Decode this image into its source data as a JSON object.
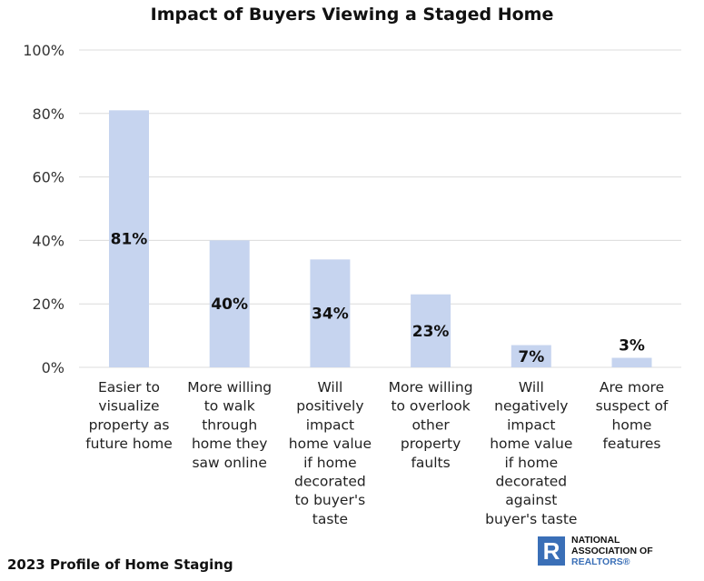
{
  "chart_data": {
    "type": "bar",
    "title": "Impact of Buyers Viewing a Staged Home",
    "categories": [
      [
        "Easier to",
        "visualize",
        "property as",
        "future home"
      ],
      [
        "More willing",
        "to walk",
        "through",
        "home they",
        "saw online"
      ],
      [
        "Will",
        "positively",
        "impact",
        "home value",
        "if home",
        "decorated",
        "to buyer's",
        "taste"
      ],
      [
        "More willing",
        "to overlook",
        "other",
        "property",
        "faults"
      ],
      [
        "Will",
        "negatively",
        "impact",
        "home value",
        "if home",
        "decorated",
        "against",
        "buyer's taste"
      ],
      [
        "Are more",
        "suspect of",
        "home",
        "features"
      ]
    ],
    "values": [
      81,
      40,
      34,
      23,
      7,
      3
    ],
    "data_labels": [
      "81%",
      "40%",
      "34%",
      "23%",
      "7%",
      "3%"
    ],
    "yticks": [
      "0%",
      "20%",
      "40%",
      "60%",
      "80%",
      "100%"
    ],
    "ylim": [
      0,
      100
    ],
    "grid": true,
    "bar_color": "#c6d4ef",
    "xlabel": "",
    "ylabel": ""
  },
  "footer": "2023 Profile of Home Staging",
  "logo": {
    "mark": "R",
    "line1": "NATIONAL",
    "line2": "ASSOCIATION OF",
    "line3": "REALTORS®",
    "color": "#3a6fb7"
  }
}
